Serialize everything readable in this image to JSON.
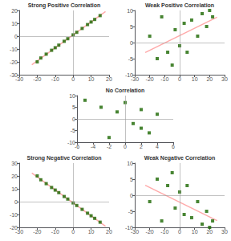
{
  "chart_data": [
    {
      "type": "scatter",
      "title": "Strong Positive Correlation",
      "grid": false,
      "xlim": [
        -30,
        20
      ],
      "xticks": [
        -30,
        -20,
        -10,
        0,
        10,
        20
      ],
      "ylim": [
        -30,
        20
      ],
      "yticks": [
        -30,
        -20,
        -10,
        0,
        10,
        20
      ],
      "series": [
        {
          "type": "scatter",
          "marker": "square",
          "color": "#1a6600",
          "x": [
            -20,
            -18,
            -15,
            -12,
            -10,
            -8,
            -5,
            -3,
            0,
            2,
            5,
            8,
            10,
            12,
            15
          ],
          "values": [
            -20,
            -17,
            -14,
            -11,
            -9,
            -7,
            -4,
            -2,
            1,
            3,
            6,
            9,
            11,
            13,
            16
          ]
        },
        {
          "type": "line",
          "color": "#ffaaaa",
          "x": [
            -23,
            18
          ],
          "values": [
            -22.2693,
            19.138
          ]
        }
      ]
    },
    {
      "type": "scatter",
      "title": "Weak Positive Correlation",
      "grid": false,
      "xlim": [
        -30,
        30
      ],
      "xticks": [
        -30,
        -20,
        -10,
        0,
        10,
        20,
        30
      ],
      "ylim": [
        -10,
        10
      ],
      "yticks": [
        -10,
        -5,
        0,
        5,
        10
      ],
      "series": [
        {
          "type": "scatter",
          "marker": "square",
          "color": "#1a6600",
          "x": [
            -20,
            -15,
            -12,
            -8,
            -5,
            -3,
            0,
            3,
            5,
            8,
            12,
            15,
            18,
            20,
            22
          ],
          "values": [
            2,
            -5,
            8,
            -3,
            -7,
            4,
            -1,
            6,
            -3,
            7,
            2,
            9,
            5,
            10,
            8
          ]
        },
        {
          "type": "line",
          "color": "#ffaaaa",
          "x": [
            -23,
            25
          ],
          "values": [
            -3.0809,
            7.9172
          ]
        }
      ]
    },
    {
      "type": "scatter",
      "title": "No Correlation",
      "grid": false,
      "xlim": [
        -6,
        6
      ],
      "xticks": [
        -6,
        -4,
        -2,
        0,
        2,
        4,
        6
      ],
      "ylim": [
        -10,
        10
      ],
      "yticks": [
        -10,
        -5,
        0,
        5,
        10
      ],
      "series": [
        {
          "type": "scatter",
          "marker": "square",
          "color": "#1a6600",
          "x": [
            -5,
            -3,
            -1,
            0,
            1,
            2,
            3,
            4,
            -2,
            2
          ],
          "values": [
            8,
            5,
            3,
            7,
            -2,
            -4,
            -6,
            2,
            -8,
            4
          ]
        }
      ]
    },
    {
      "type": "scatter",
      "title": "Strong Negative Correlation",
      "grid": false,
      "xlim": [
        -30,
        20
      ],
      "xticks": [
        -30,
        -20,
        -10,
        0,
        10,
        20
      ],
      "ylim": [
        -20,
        30
      ],
      "yticks": [
        -20,
        -10,
        0,
        10,
        20,
        30
      ],
      "series": [
        {
          "type": "scatter",
          "marker": "square",
          "color": "#1a6600",
          "x": [
            -20,
            -18,
            -15,
            -12,
            -10,
            -8,
            -5,
            -3,
            0,
            2,
            5,
            8,
            10,
            12,
            15
          ],
          "values": [
            20,
            17,
            14,
            11,
            9,
            7,
            4,
            2,
            -1,
            -3,
            -6,
            -9,
            -11,
            -13,
            -16
          ]
        },
        {
          "type": "line",
          "color": "#ffaaaa",
          "x": [
            -23,
            18
          ],
          "values": [
            22.2693,
            -19.138
          ]
        }
      ]
    },
    {
      "type": "scatter",
      "title": "Weak Negative Correlation",
      "grid": false,
      "xlim": [
        -30,
        30
      ],
      "xticks": [
        -30,
        -20,
        -10,
        0,
        10,
        20,
        30
      ],
      "ylim": [
        -10,
        10
      ],
      "yticks": [
        -10,
        -5,
        0,
        5,
        10
      ],
      "series": [
        {
          "type": "scatter",
          "marker": "square",
          "color": "#1a6600",
          "x": [
            -20,
            -15,
            -12,
            -8,
            -5,
            -3,
            0,
            3,
            5,
            8,
            12,
            15,
            18,
            20,
            22
          ],
          "values": [
            -2,
            5,
            -8,
            3,
            7,
            -4,
            1,
            -6,
            3,
            -7,
            -2,
            -9,
            -5,
            -10,
            -8
          ]
        },
        {
          "type": "line",
          "color": "#ffaaaa",
          "x": [
            -23,
            25
          ],
          "values": [
            3.0809,
            -7.9172
          ]
        }
      ]
    }
  ]
}
